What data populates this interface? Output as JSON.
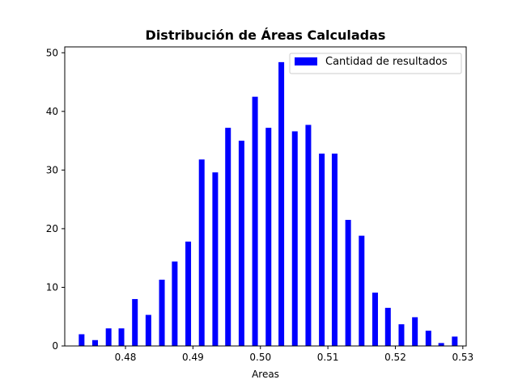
{
  "chart_data": {
    "type": "bar",
    "title": "Distribución de Áreas Calculadas",
    "xlabel": "Areas",
    "ylabel": "",
    "xlim": [
      0.471,
      0.5305
    ],
    "ylim": [
      0,
      51
    ],
    "xticks": [
      0.48,
      0.49,
      0.5,
      0.51,
      0.52,
      0.53
    ],
    "xtick_labels": [
      "0.48",
      "0.49",
      "0.50",
      "0.51",
      "0.52",
      "0.53"
    ],
    "yticks": [
      0,
      10,
      20,
      30,
      40,
      50
    ],
    "ytick_labels": [
      "0",
      "10",
      "20",
      "30",
      "40",
      "50"
    ],
    "grid": false,
    "legend": {
      "position": "top-right",
      "entries": [
        "Cantidad de resultados"
      ]
    },
    "series": [
      {
        "name": "Cantidad de resultados",
        "color": "#0000ff",
        "x": [
          0.4735,
          0.4755,
          0.4775,
          0.4794,
          0.4814,
          0.4834,
          0.4854,
          0.4873,
          0.4893,
          0.4913,
          0.4933,
          0.4952,
          0.4972,
          0.4992,
          0.5012,
          0.5031,
          0.5051,
          0.5071,
          0.5091,
          0.511,
          0.513,
          0.515,
          0.517,
          0.5189,
          0.5209,
          0.5229,
          0.5249,
          0.5268,
          0.5288
        ],
        "values": [
          2,
          1,
          3,
          3,
          8,
          5.3,
          11.3,
          14.4,
          17.8,
          31.8,
          29.6,
          37.2,
          35,
          42.5,
          37.2,
          48.4,
          36.6,
          37.7,
          32.8,
          32.8,
          21.5,
          18.8,
          9.1,
          6.5,
          3.7,
          4.9,
          2.6,
          0.5,
          1.6
        ]
      }
    ]
  }
}
